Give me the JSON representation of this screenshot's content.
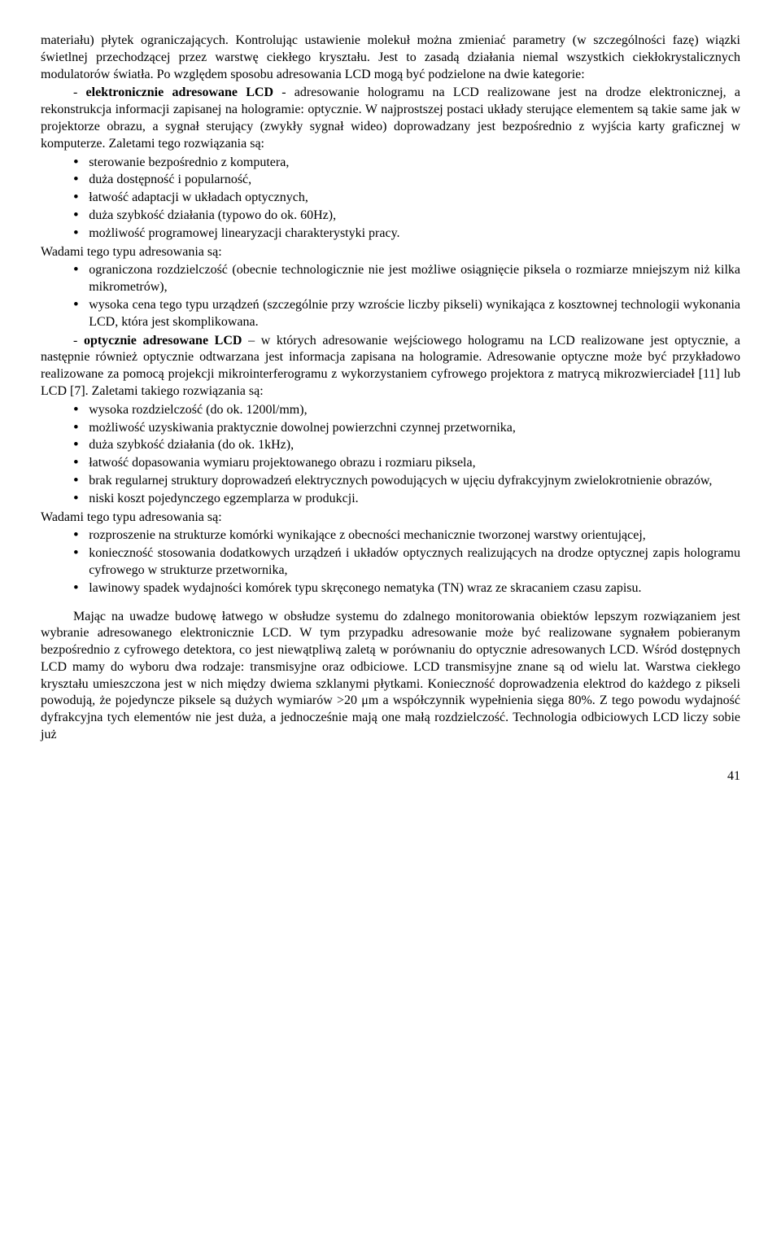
{
  "p1": "materiału) płytek ograniczających. Kontrolując ustawienie molekuł można zmieniać parametry (w szczególności fazę) wiązki świetlnej przechodzącej przez warstwę ciekłego kryształu. Jest to zasadą działania niemal wszystkich ciekłokrystalicznych modulatorów światła. Po względem sposobu adresowania LCD mogą być podzielone na dwie kategorie:",
  "p2_pre": "- ",
  "p2_bold": "elektronicznie adresowane LCD",
  "p2_post": " - adresowanie hologramu na LCD realizowane jest na drodze elektronicznej, a rekonstrukcja informacji zapisanej na hologramie: optycznie. W najprostszej postaci układy sterujące elementem są takie same jak w projektorze obrazu, a sygnał sterujący (zwykły sygnał wideo) doprowadzany jest bezpośrednio z wyjścia karty graficznej w komputerze. Zaletami tego rozwiązania są:",
  "list1": [
    "sterowanie bezpośrednio z komputera,",
    "duża dostępność i popularność,",
    "łatwość adaptacji w układach optycznych,",
    "duża szybkość działania (typowo do ok. 60Hz),",
    "możliwość programowej linearyzacji charakterystyki pracy."
  ],
  "p3": "Wadami tego typu adresowania są:",
  "list2": [
    "ograniczona rozdzielczość (obecnie technologicznie nie jest możliwe osiągnięcie piksela o rozmiarze mniejszym niż kilka mikrometrów),",
    "wysoka cena tego typu urządzeń (szczególnie przy wzroście liczby pikseli) wynikająca z kosztownej technologii wykonania LCD, która jest skomplikowana."
  ],
  "p4_pre": "- ",
  "p4_bold": "optycznie adresowane LCD",
  "p4_post": " – w których adresowanie wejściowego hologramu na LCD realizowane jest optycznie, a następnie również optycznie odtwarzana jest informacja zapisana na hologramie. Adresowanie optyczne może być przykładowo realizowane za pomocą projekcji mikrointerferogramu z wykorzystaniem cyfrowego projektora z matrycą mikrozwierciadeł [11] lub LCD [7]. Zaletami takiego rozwiązania są:",
  "list3": [
    "wysoka rozdzielczość (do ok. 1200l/mm),",
    "możliwość uzyskiwania praktycznie dowolnej powierzchni czynnej przetwornika,",
    "duża szybkość działania (do ok. 1kHz),",
    "łatwość dopasowania wymiaru projektowanego obrazu i rozmiaru piksela,",
    "brak regularnej struktury doprowadzeń elektrycznych powodujących w ujęciu dyfrakcyjnym zwielokrotnienie obrazów,",
    "niski koszt pojedynczego egzemplarza w produkcji."
  ],
  "p5": "Wadami tego typu adresowania są:",
  "list4": [
    "rozproszenie na strukturze komórki wynikające z obecności mechanicznie tworzonej warstwy orientującej,",
    "konieczność stosowania dodatkowych urządzeń i układów optycznych realizujących na drodze optycznej zapis hologramu cyfrowego w strukturze przetwornika,",
    "lawinowy spadek wydajności komórek typu skręconego nematyka (TN) wraz ze skracaniem czasu zapisu."
  ],
  "p6": "Mając na uwadze budowę łatwego w obsłudze systemu do zdalnego monitorowania obiektów lepszym rozwiązaniem jest wybranie adresowanego elektronicznie LCD. W tym przypadku adresowanie może być realizowane sygnałem pobieranym bezpośrednio z cyfrowego detektora, co jest niewątpliwą zaletą w porównaniu do optycznie adresowanych LCD. Wśród dostępnych LCD mamy do wyboru dwa rodzaje: transmisyjne oraz odbiciowe. LCD transmisyjne znane są od wielu lat. Warstwa ciekłego kryształu umieszczona jest w nich między dwiema szklanymi płytkami. Konieczność doprowadzenia elektrod do każdego z pikseli powodują, że pojedyncze piksele są dużych wymiarów >20 μm a współczynnik wypełnienia sięga 80%. Z tego powodu wydajność dyfrakcyjna tych elementów nie jest duża, a jednocześnie mają one małą rozdzielczość. Technologia odbiciowych LCD liczy sobie już",
  "page_num": "41"
}
